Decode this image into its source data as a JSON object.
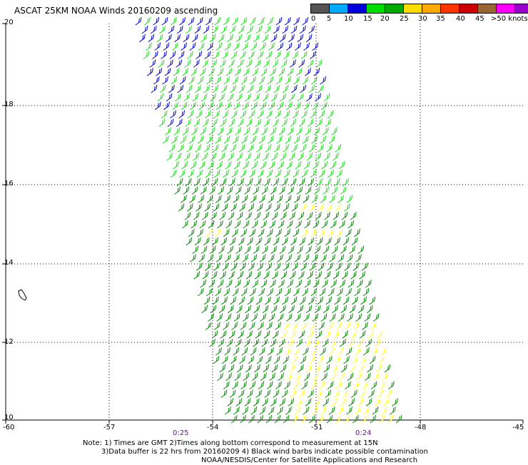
{
  "title": "ASCAT 25KM NOAA Winds 20160209 ascending",
  "legend": {
    "colors": [
      "#555555",
      "#00aaff",
      "#0000dd",
      "#00dd00",
      "#00aa00",
      "#ffdd00",
      "#ffaa00",
      "#ff3300",
      "#cc0000",
      "#996633",
      "#ff00ff",
      "#9900cc",
      "#4b0082"
    ],
    "labels": [
      "0",
      "5",
      "10",
      "15",
      "20",
      "25",
      "30",
      "35",
      "40",
      "45",
      ">50 knots"
    ]
  },
  "axes": {
    "x_ticks": [
      "-60",
      "-57",
      "-54",
      "-51",
      "-48",
      "-45"
    ],
    "y_ticks": [
      "20",
      "18",
      "16",
      "14",
      "12",
      "10"
    ]
  },
  "times": [
    "0:25",
    "0:24"
  ],
  "notes": {
    "line1": "Note: 1) Times are GMT 2)Times along bottom correspond to measurement at 15N",
    "line2": "3)Data buffer is 22 hrs from 20160209 4) Black wind barbs indicate possible contamination",
    "line3": "NOAA/NESDIS/Center for Satellite Applications and Research"
  },
  "barb_colors": {
    "blue": "#0000cc",
    "light_green": "#22dd22",
    "dark_green": "#008800",
    "yellow": "#ffff33"
  }
}
